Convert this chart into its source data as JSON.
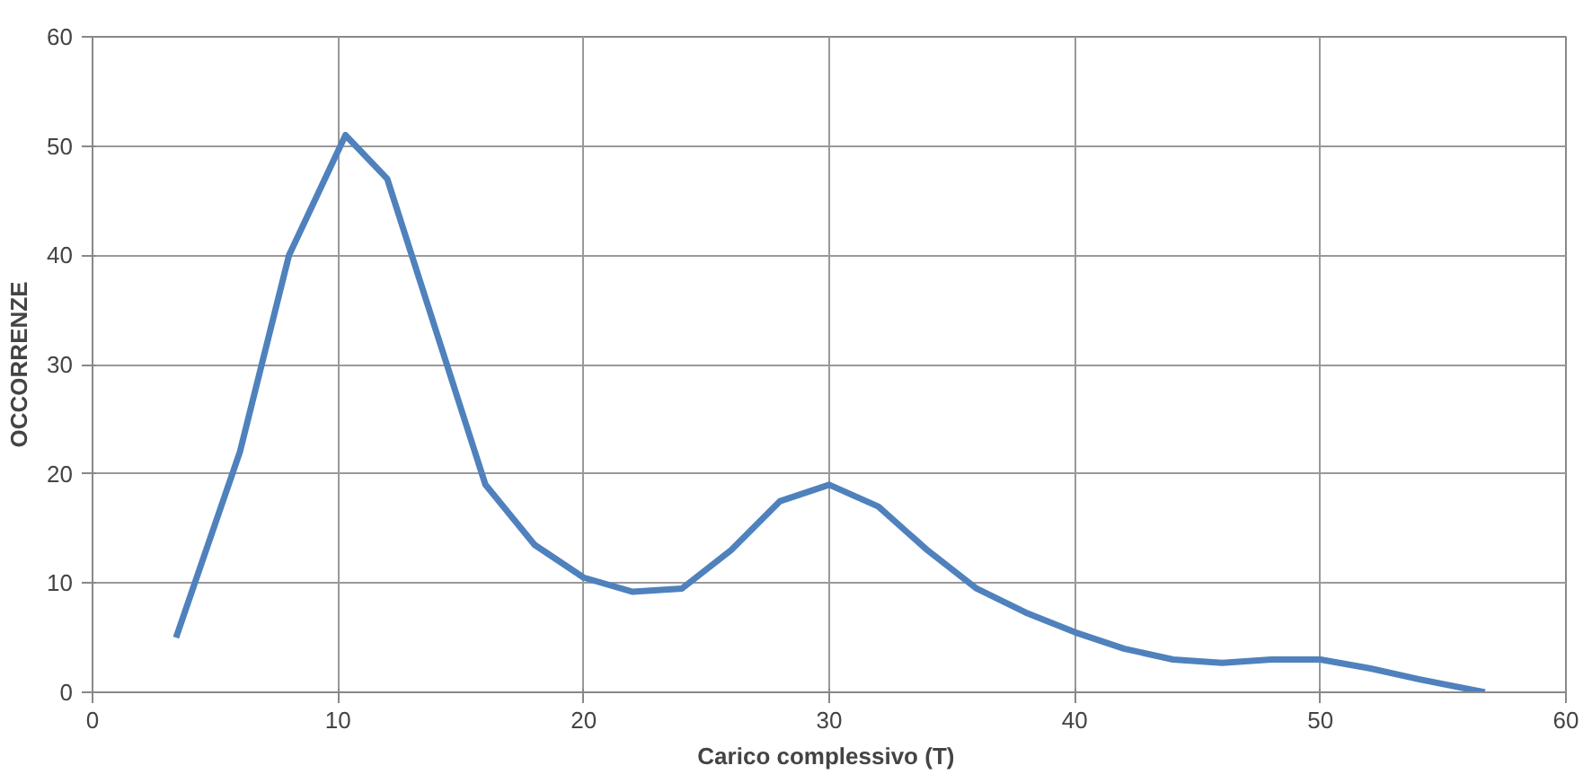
{
  "chart_data": {
    "type": "line",
    "xlabel": "Carico complessivo  (T)",
    "ylabel": "OCCORRENZE",
    "xlim": [
      0,
      60
    ],
    "ylim": [
      0,
      60
    ],
    "xticks": [
      0,
      10,
      20,
      30,
      40,
      50,
      60
    ],
    "yticks": [
      0,
      10,
      20,
      30,
      40,
      50,
      60
    ],
    "grid": true,
    "marker": "none",
    "line_style": "solid",
    "series": [
      {
        "color": "#4f81bd",
        "x": [
          3.4,
          6,
          8,
          10.3,
          12,
          14,
          16,
          18,
          20,
          22,
          24,
          26,
          28,
          30,
          32,
          34,
          36,
          38,
          40,
          42,
          44,
          46,
          48,
          50,
          52,
          54,
          56.7
        ],
        "values": [
          5,
          22,
          40,
          51,
          47,
          33,
          19,
          13.5,
          10.5,
          9.2,
          9.5,
          13,
          17.5,
          19,
          17,
          13,
          9.5,
          7.3,
          5.5,
          4,
          3,
          2.7,
          3,
          3,
          2.2,
          1.2,
          0
        ]
      }
    ]
  }
}
